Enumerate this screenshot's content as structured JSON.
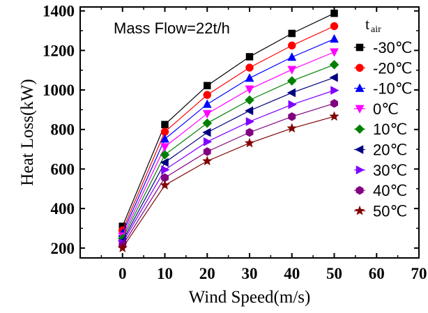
{
  "chart_data": {
    "type": "line",
    "xlabel": "Wind Speed(m/s)",
    "ylabel": "Heat Loss(kW)",
    "annotation": "Mass Flow=22t/h",
    "legend_title_main": "t",
    "legend_title_sub": "air",
    "legend_placement": "right",
    "grid": false,
    "xlim": [
      -10,
      70
    ],
    "ylim": [
      150,
      1420
    ],
    "xticks": [
      "0",
      "10",
      "20",
      "30",
      "40",
      "50",
      "60",
      "70"
    ],
    "yticks": [
      "200",
      "400",
      "600",
      "800",
      "1000",
      "1200",
      "1400"
    ],
    "x": [
      0,
      10,
      20,
      30,
      40,
      50
    ],
    "series": [
      {
        "name": "-30℃",
        "color": "#000000",
        "marker": "square",
        "values": [
          310,
          825,
          1022,
          1168,
          1286,
          1388
        ]
      },
      {
        "name": "-20℃",
        "color": "#ff0000",
        "marker": "circle",
        "values": [
          290,
          788,
          975,
          1113,
          1225,
          1323
        ]
      },
      {
        "name": "-10℃",
        "color": "#0000ff",
        "marker": "triangle-up",
        "values": [
          275,
          752,
          928,
          1060,
          1166,
          1258
        ]
      },
      {
        "name": "0℃",
        "color": "#ff00ff",
        "marker": "triangle-down",
        "values": [
          260,
          712,
          880,
          1004,
          1103,
          1192
        ]
      },
      {
        "name": "10℃",
        "color": "#008000",
        "marker": "diamond",
        "values": [
          248,
          672,
          832,
          949,
          1046,
          1128
        ]
      },
      {
        "name": "20℃",
        "color": "#000080",
        "marker": "triangle-left",
        "values": [
          236,
          633,
          785,
          895,
          986,
          1063
        ]
      },
      {
        "name": "30℃",
        "color": "#8000ff",
        "marker": "triangle-right",
        "values": [
          226,
          596,
          738,
          840,
          926,
          998
        ]
      },
      {
        "name": "40℃",
        "color": "#800080",
        "marker": "hexagon",
        "values": [
          213,
          556,
          688,
          785,
          865,
          932
        ]
      },
      {
        "name": "50℃",
        "color": "#800000",
        "marker": "star",
        "values": [
          200,
          518,
          640,
          731,
          806,
          866
        ]
      }
    ]
  }
}
